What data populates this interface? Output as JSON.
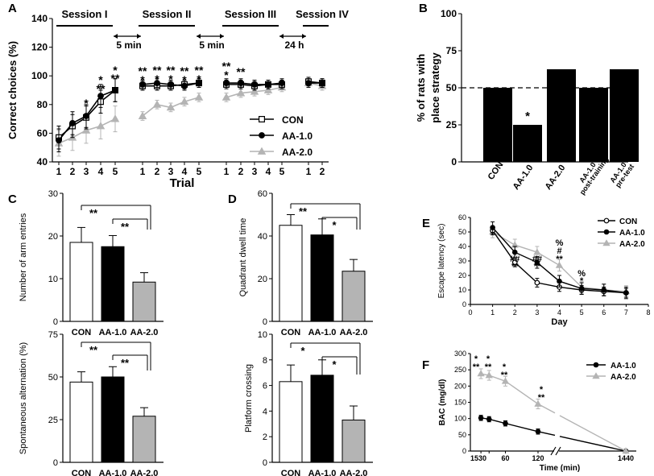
{
  "colors": {
    "black": "#000000",
    "gray": "#b4b4b4",
    "white": "#ffffff"
  },
  "chart_data": [
    {
      "id": "A",
      "type": "line",
      "panel_label": "A",
      "ylabel": "Correct choices (%)",
      "xlabel": "Trial",
      "ylim": [
        40,
        140
      ],
      "yticks": [
        "40",
        "60",
        "80",
        "100",
        "120",
        "140"
      ],
      "sessions": [
        {
          "label": "Session I",
          "trial_labels": [
            "1",
            "2",
            "3",
            "4",
            "5"
          ]
        },
        {
          "label": "Session II",
          "trial_labels": [
            "1",
            "2",
            "3",
            "4",
            "5"
          ]
        },
        {
          "label": "Session III",
          "trial_labels": [
            "1",
            "2",
            "3",
            "4",
            "5"
          ]
        },
        {
          "label": "Session IV",
          "trial_labels": [
            "1",
            "2"
          ]
        }
      ],
      "intervals": [
        "5 min",
        "5 min",
        "24 h"
      ],
      "legend": [
        "CON",
        "AA-1.0",
        "AA-2.0"
      ],
      "series": [
        {
          "name": "CON",
          "marker": "square-open",
          "sessions": [
            [
              57,
              65,
              71,
              82,
              90
            ],
            [
              93,
              93,
              93,
              94,
              95
            ],
            [
              94,
              94,
              93,
              94,
              94
            ],
            [
              96,
              95
            ]
          ],
          "err": 5
        },
        {
          "name": "AA-1.0",
          "marker": "circle",
          "sessions": [
            [
              55,
              67,
              72,
              86,
              90
            ],
            [
              94,
              95,
              94,
              93,
              95
            ],
            [
              95,
              95,
              94,
              94,
              95
            ],
            [
              95,
              95
            ]
          ],
          "err": 5
        },
        {
          "name": "AA-2.0",
          "marker": "triangle",
          "sessions": [
            [
              53,
              57,
              62,
              65,
              70
            ],
            [
              72,
              80,
              78,
              82,
              85
            ],
            [
              85,
              88,
              89,
              90,
              92
            ],
            [
              95,
              93
            ]
          ],
          "err": 6
        }
      ],
      "annotations": [
        "*",
        "**",
        "*",
        "**",
        "*",
        "**",
        "*",
        "**",
        "*",
        "**",
        "*",
        "**",
        "*",
        "**",
        "*",
        "**",
        "*",
        "**",
        "**",
        "**",
        "*",
        "**"
      ]
    },
    {
      "id": "B",
      "type": "bar",
      "panel_label": "B",
      "ylabel": "% of rats with place strategy",
      "ylim": [
        0,
        100
      ],
      "yticks": [
        "0",
        "25",
        "50",
        "75",
        "100"
      ],
      "categories": [
        "CON",
        "AA-1.0",
        "AA-2.0",
        "AA-1.0 post-training",
        "AA-1.0 pre-test"
      ],
      "values": [
        50,
        25,
        62.5,
        50,
        62.5
      ],
      "reference_line": 50,
      "annotations": [
        "*"
      ]
    },
    {
      "id": "C1",
      "type": "bar",
      "panel_label": "C",
      "ylabel": "Number of arm entries",
      "ylim": [
        0,
        30
      ],
      "yticks": [
        "0",
        "10",
        "20",
        "30"
      ],
      "categories": [
        "CON",
        "AA-1.0",
        "AA-2.0"
      ],
      "values": [
        18.5,
        17.5,
        9.2
      ],
      "errors": [
        3.5,
        2.6,
        2.2
      ],
      "annotations": [
        "**",
        "**"
      ]
    },
    {
      "id": "C2",
      "type": "bar",
      "ylabel": "Spontaneous alternation (%)",
      "ylim": [
        0,
        75
      ],
      "yticks": [
        "0",
        "25",
        "50",
        "75"
      ],
      "categories": [
        "CON",
        "AA-1.0",
        "AA-2.0"
      ],
      "values": [
        47,
        50,
        27
      ],
      "errors": [
        6,
        6,
        5
      ],
      "annotations": [
        "**",
        "**"
      ]
    },
    {
      "id": "D1",
      "type": "bar",
      "panel_label": "D",
      "ylabel": "Quadrant dwell time",
      "ylim": [
        0,
        60
      ],
      "yticks": [
        "0",
        "20",
        "40",
        "60"
      ],
      "categories": [
        "CON",
        "AA-1.0",
        "AA-2.0"
      ],
      "values": [
        45,
        40.5,
        23.5
      ],
      "errors": [
        5,
        7.5,
        5.5
      ],
      "annotations": [
        "**",
        "*"
      ]
    },
    {
      "id": "D2",
      "type": "bar",
      "ylabel": "Platform crossing",
      "ylim": [
        0,
        10
      ],
      "yticks": [
        "0",
        "2",
        "4",
        "6",
        "8",
        "10"
      ],
      "categories": [
        "CON",
        "AA-1.0",
        "AA-2.0"
      ],
      "values": [
        6.3,
        6.8,
        3.3
      ],
      "errors": [
        1.3,
        1.2,
        1.1
      ],
      "annotations": [
        "*",
        "*"
      ]
    },
    {
      "id": "E",
      "type": "line",
      "panel_label": "E",
      "ylabel": "Escape latency (sec)",
      "xlabel": "Day",
      "xlim": [
        0,
        8
      ],
      "ylim": [
        0,
        60
      ],
      "xticks": [
        "0",
        "1",
        "2",
        "3",
        "4",
        "5",
        "6",
        "7",
        "8"
      ],
      "yticks": [
        "0",
        "10",
        "20",
        "30",
        "40",
        "50",
        "60"
      ],
      "legend": [
        "CON",
        "AA-1.0",
        "AA-2.0"
      ],
      "x": [
        1,
        2,
        3,
        4,
        5,
        6,
        7
      ],
      "series": [
        {
          "name": "CON",
          "marker": "circle-open",
          "values": [
            51,
            29,
            15,
            12,
            10,
            9,
            8
          ],
          "err": 3
        },
        {
          "name": "AA-1.0",
          "marker": "circle",
          "values": [
            53,
            36,
            29,
            16,
            11,
            10,
            8
          ],
          "err": 4
        },
        {
          "name": "AA-2.0",
          "marker": "triangle",
          "values": [
            50,
            41,
            36,
            27,
            12,
            10,
            9
          ],
          "err": 4
        }
      ],
      "annotations": [
        "##",
        "**",
        "##",
        "**",
        "%",
        "#",
        "**",
        "%",
        "*"
      ]
    },
    {
      "id": "F",
      "type": "line",
      "panel_label": "F",
      "ylabel": "BAC (mg/dl)",
      "xlabel": "Time (min)",
      "ylim": [
        0,
        300
      ],
      "yticks": [
        "0",
        "50",
        "100",
        "150",
        "200",
        "250",
        "300"
      ],
      "xticks": [
        "15",
        "30",
        "60",
        "120",
        "1440"
      ],
      "legend": [
        "AA-1.0",
        "AA-2.0"
      ],
      "x": [
        15,
        30,
        60,
        120,
        1440
      ],
      "series": [
        {
          "name": "AA-1.0",
          "marker": "circle",
          "values": [
            102,
            98,
            85,
            60,
            0
          ],
          "err": 8
        },
        {
          "name": "AA-2.0",
          "marker": "triangle",
          "values": [
            238,
            233,
            215,
            145,
            0
          ],
          "err": 15
        }
      ],
      "annotations": [
        "*",
        "**",
        "*",
        "**",
        "*",
        "**",
        "*",
        "**"
      ]
    }
  ]
}
